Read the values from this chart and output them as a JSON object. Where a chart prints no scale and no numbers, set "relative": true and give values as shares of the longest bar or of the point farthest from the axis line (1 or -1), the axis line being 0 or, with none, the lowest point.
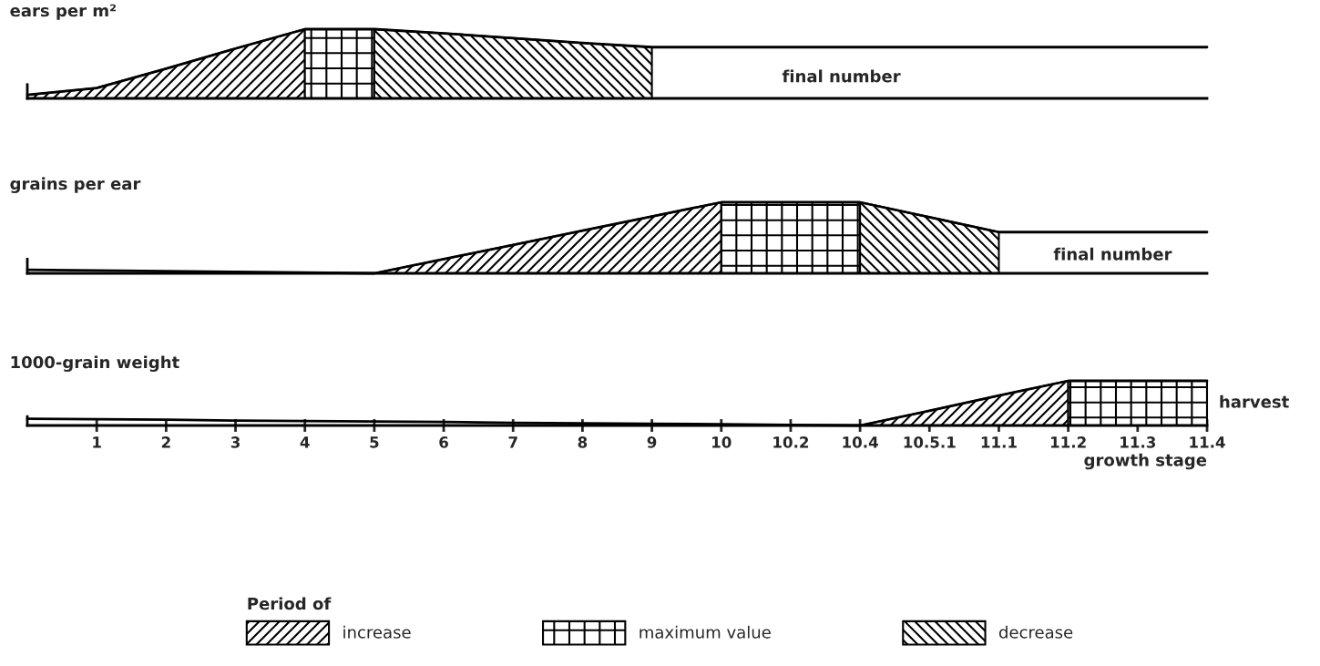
{
  "chart_data": [
    {
      "type": "area",
      "relative": true,
      "title": "ears per m²",
      "tick_labels": false,
      "categories": [
        null,
        "1",
        "2",
        "3",
        "4",
        "5",
        "6",
        "7",
        "8",
        "9",
        "10",
        "10.2",
        "10.4",
        "10.5.1",
        "11.1",
        "11.2",
        "11.3",
        "11.4"
      ],
      "annotations": [
        "final number"
      ],
      "series": [
        {
          "type": "line",
          "color": "#000000",
          "values": [
            0.05,
            0.15,
            0.43,
            0.72,
            1,
            1,
            0.94,
            0.87,
            0.8,
            0.74,
            0.74,
            0.74,
            0.74,
            0.74,
            0.74,
            0.74,
            0.74,
            0.74
          ]
        },
        {
          "color": "#000000",
          "values": [
            0.05,
            0.15,
            0.43,
            0.72,
            1,
            null,
            null,
            null,
            null,
            null,
            null,
            null,
            null,
            null,
            null,
            null,
            null,
            null
          ]
        },
        {
          "color": "#000000",
          "values": [
            null,
            null,
            null,
            null,
            1,
            1,
            null,
            null,
            null,
            null,
            null,
            null,
            null,
            null,
            null,
            null,
            null,
            null
          ]
        },
        {
          "color": "#000000",
          "values": [
            null,
            null,
            null,
            null,
            null,
            1,
            0.94,
            0.87,
            0.8,
            0.74,
            null,
            null,
            null,
            null,
            null,
            null,
            null,
            null
          ]
        }
      ]
    },
    {
      "type": "area",
      "relative": true,
      "title": "grains per ear",
      "tick_labels": false,
      "categories": [
        null,
        "1",
        "2",
        "3",
        "4",
        "5",
        "6",
        "7",
        "8",
        "9",
        "10",
        "10.2",
        "10.4",
        "10.5.1",
        "11.1",
        "11.2",
        "11.3",
        "11.4"
      ],
      "legend": "bottom",
      "legend_title": "Period of",
      "annotations": [
        "final number"
      ],
      "series": [
        {
          "type": "line",
          "color": "#000000",
          "values": [
            0.05,
            0.04,
            0.03,
            0.02,
            0.01,
            0,
            0.2,
            0.4,
            0.6,
            0.8,
            1,
            1,
            1,
            0.79,
            0.58,
            0.58,
            0.58,
            0.58
          ]
        },
        {
          "name": "increase",
          "color": "#000000",
          "values": [
            null,
            null,
            null,
            null,
            null,
            0,
            0.2,
            0.4,
            0.6,
            0.8,
            1,
            null,
            null,
            null,
            null,
            null,
            null,
            null
          ]
        },
        {
          "name": "maximum value",
          "color": "#000000",
          "values": [
            null,
            null,
            null,
            null,
            null,
            null,
            null,
            null,
            null,
            null,
            1,
            1,
            1,
            null,
            null,
            null,
            null,
            null
          ]
        },
        {
          "name": "decrease",
          "color": "#000000",
          "values": [
            null,
            null,
            null,
            null,
            null,
            null,
            null,
            null,
            null,
            null,
            null,
            null,
            1,
            0.79,
            0.58,
            null,
            null,
            null
          ]
        }
      ]
    },
    {
      "type": "area",
      "relative": true,
      "title": "1000-grain weight",
      "xlabel": "growth stage",
      "tick_labels": "x",
      "categories": [
        null,
        "1",
        "2",
        "3",
        "4",
        "5",
        "6",
        "7",
        "8",
        "9",
        "10",
        "10.2",
        "10.4",
        "10.5.1",
        "11.1",
        "11.2",
        "11.3",
        "11.4"
      ],
      "annotations": [
        "harvest"
      ],
      "series": [
        {
          "type": "line",
          "color": "#000000",
          "values": [
            0.15,
            0.14,
            0.13,
            0.11,
            0.1,
            0.09,
            0.08,
            0.06,
            0.05,
            0.04,
            0.03,
            0.01,
            0,
            0.33,
            0.67,
            1,
            1,
            1
          ]
        },
        {
          "color": "#000000",
          "values": [
            null,
            null,
            null,
            null,
            null,
            null,
            null,
            null,
            null,
            null,
            null,
            null,
            0,
            0.33,
            0.67,
            1,
            null,
            null
          ]
        },
        {
          "color": "#000000",
          "values": [
            null,
            null,
            null,
            null,
            null,
            null,
            null,
            null,
            null,
            null,
            null,
            null,
            null,
            null,
            null,
            1,
            1,
            1
          ]
        }
      ]
    }
  ]
}
